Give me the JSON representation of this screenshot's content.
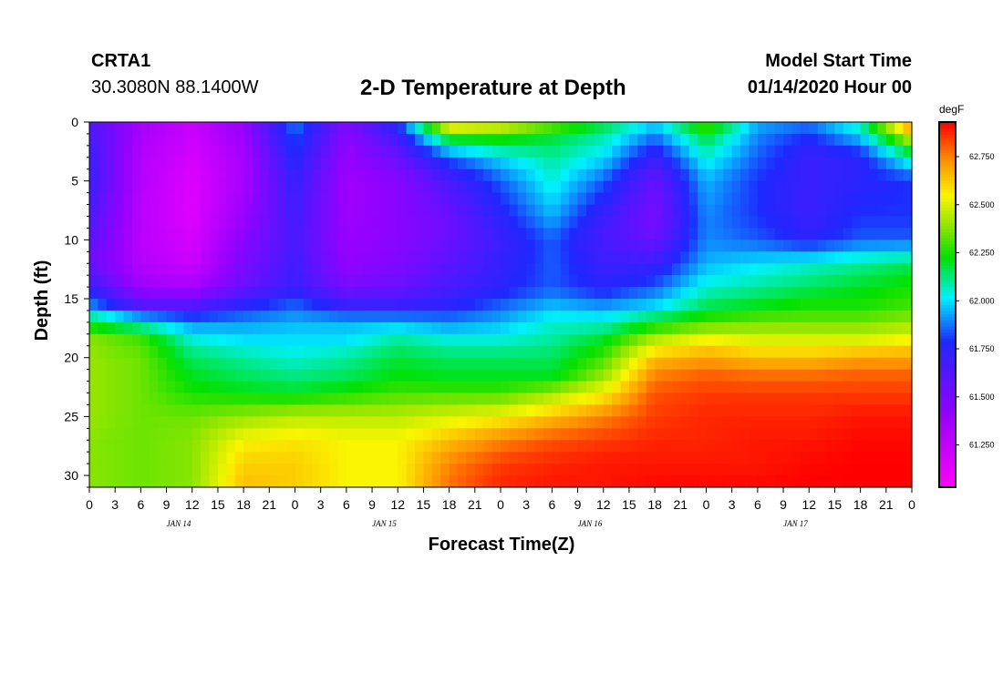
{
  "header": {
    "station": "CRTA1",
    "coords": "30.3080N 88.1400W",
    "title": "2-D Temperature at Depth",
    "model_label": "Model Start Time",
    "model_time": "01/14/2020 Hour 00"
  },
  "chart_data": {
    "type": "heatmap",
    "title": "2-D Temperature at Depth",
    "xlabel": "Forecast Time(Z)",
    "ylabel": "Depth (ft)",
    "x_range_hours": [
      0,
      96
    ],
    "x_tick_step_hours": 3,
    "x_tick_labels": [
      "0",
      "3",
      "6",
      "9",
      "12",
      "15",
      "18",
      "21",
      "0",
      "3",
      "6",
      "9",
      "12",
      "15",
      "18",
      "21",
      "0",
      "3",
      "6",
      "9",
      "12",
      "15",
      "18",
      "21",
      "0",
      "3",
      "6",
      "9",
      "12",
      "15",
      "18",
      "21",
      "0"
    ],
    "day_labels": [
      {
        "label": "JAN 14",
        "hour": 10
      },
      {
        "label": "JAN 15",
        "hour": 34
      },
      {
        "label": "JAN 16",
        "hour": 58
      },
      {
        "label": "JAN 17",
        "hour": 82
      }
    ],
    "y_range_ft": [
      0,
      31
    ],
    "y_tick_labels": [
      "0",
      "5",
      "10",
      "15",
      "20",
      "25",
      "30"
    ],
    "y_tick_values": [
      0,
      5,
      10,
      15,
      20,
      25,
      30
    ],
    "colorbar": {
      "unit": "degF",
      "min": 61.03,
      "max": 62.93,
      "tick_values": [
        61.25,
        61.5,
        61.75,
        62.0,
        62.25,
        62.5,
        62.75
      ],
      "tick_labels": [
        "61.250",
        "61.500",
        "61.750",
        "62.000",
        "62.250",
        "62.500",
        "62.750"
      ]
    },
    "grid": {
      "depths_ft": [
        0,
        1,
        3,
        5,
        8,
        10,
        12,
        14,
        15.5,
        17,
        18.5,
        20,
        21.5,
        23,
        25,
        27,
        29,
        31
      ],
      "times_h": [
        0,
        6,
        12,
        18,
        24,
        30,
        36,
        42,
        48,
        54,
        60,
        66,
        72,
        78,
        84,
        90,
        96
      ],
      "values_degF": [
        [
          61.65,
          61.35,
          61.22,
          61.4,
          61.9,
          61.5,
          61.8,
          62.7,
          62.6,
          62.4,
          62.2,
          62.0,
          62.35,
          61.95,
          61.9,
          62.1,
          62.85
        ],
        [
          61.65,
          61.35,
          61.22,
          61.4,
          61.85,
          61.45,
          61.7,
          62.3,
          62.3,
          62.2,
          62.1,
          61.9,
          62.2,
          61.9,
          61.8,
          62.0,
          62.55
        ],
        [
          61.7,
          61.3,
          61.18,
          61.35,
          61.78,
          61.4,
          61.55,
          61.85,
          62.0,
          62.1,
          62.0,
          61.7,
          62.05,
          61.85,
          61.7,
          61.75,
          62.1
        ],
        [
          61.7,
          61.3,
          61.15,
          61.35,
          61.72,
          61.38,
          61.45,
          61.65,
          61.85,
          62.05,
          61.85,
          61.55,
          61.95,
          61.8,
          61.7,
          61.75,
          61.8
        ],
        [
          61.65,
          61.28,
          61.15,
          61.4,
          61.68,
          61.38,
          61.45,
          61.55,
          61.75,
          61.95,
          61.7,
          61.5,
          61.9,
          61.8,
          61.7,
          61.8,
          61.8
        ],
        [
          61.6,
          61.28,
          61.18,
          61.45,
          61.66,
          61.4,
          61.45,
          61.55,
          61.7,
          61.85,
          61.65,
          61.55,
          61.9,
          61.85,
          61.75,
          61.85,
          61.85
        ],
        [
          61.55,
          61.3,
          61.22,
          61.5,
          61.68,
          61.42,
          61.48,
          61.6,
          61.72,
          61.85,
          61.7,
          61.7,
          61.95,
          62.0,
          62.05,
          62.1,
          62.15
        ],
        [
          61.7,
          61.38,
          61.35,
          61.55,
          61.7,
          61.5,
          61.55,
          61.65,
          61.75,
          61.85,
          61.75,
          61.85,
          62.05,
          62.1,
          62.15,
          62.2,
          62.25
        ],
        [
          61.9,
          61.6,
          61.6,
          61.75,
          61.85,
          61.7,
          61.7,
          61.75,
          61.85,
          61.95,
          61.9,
          61.98,
          62.15,
          62.2,
          62.25,
          62.25,
          62.3
        ],
        [
          62.2,
          62.05,
          61.9,
          61.92,
          61.95,
          61.95,
          61.95,
          61.9,
          61.95,
          62.05,
          62.05,
          62.2,
          62.3,
          62.35,
          62.35,
          62.35,
          62.4
        ],
        [
          62.38,
          62.3,
          62.05,
          62.0,
          62.0,
          62.0,
          62.1,
          62.05,
          62.05,
          62.1,
          62.2,
          62.45,
          62.55,
          62.5,
          62.5,
          62.5,
          62.55
        ],
        [
          62.4,
          62.35,
          62.15,
          62.1,
          62.05,
          62.1,
          62.18,
          62.15,
          62.15,
          62.15,
          62.3,
          62.65,
          62.7,
          62.65,
          62.65,
          62.7,
          62.7
        ],
        [
          62.4,
          62.35,
          62.2,
          62.15,
          62.12,
          62.15,
          62.22,
          62.2,
          62.2,
          62.2,
          62.4,
          62.75,
          62.8,
          62.78,
          62.78,
          62.8,
          62.8
        ],
        [
          62.4,
          62.35,
          62.25,
          62.22,
          62.2,
          62.25,
          62.3,
          62.3,
          62.3,
          62.4,
          62.55,
          62.82,
          62.85,
          62.85,
          62.85,
          62.85,
          62.85
        ],
        [
          62.4,
          62.35,
          62.35,
          62.4,
          62.45,
          62.45,
          62.45,
          62.5,
          62.55,
          62.65,
          62.75,
          62.85,
          62.88,
          62.88,
          62.88,
          62.9,
          62.9
        ],
        [
          62.38,
          62.35,
          62.38,
          62.55,
          62.58,
          62.55,
          62.55,
          62.65,
          62.75,
          62.82,
          62.85,
          62.88,
          62.88,
          62.9,
          62.9,
          62.92,
          62.92
        ],
        [
          62.38,
          62.35,
          62.38,
          62.62,
          62.62,
          62.55,
          62.55,
          62.75,
          62.85,
          62.88,
          62.9,
          62.9,
          62.9,
          62.9,
          62.92,
          62.93,
          62.93
        ],
        [
          62.38,
          62.35,
          62.38,
          62.65,
          62.62,
          62.55,
          62.55,
          62.78,
          62.88,
          62.9,
          62.9,
          62.92,
          62.92,
          62.92,
          62.93,
          62.93,
          62.93
        ]
      ]
    }
  }
}
